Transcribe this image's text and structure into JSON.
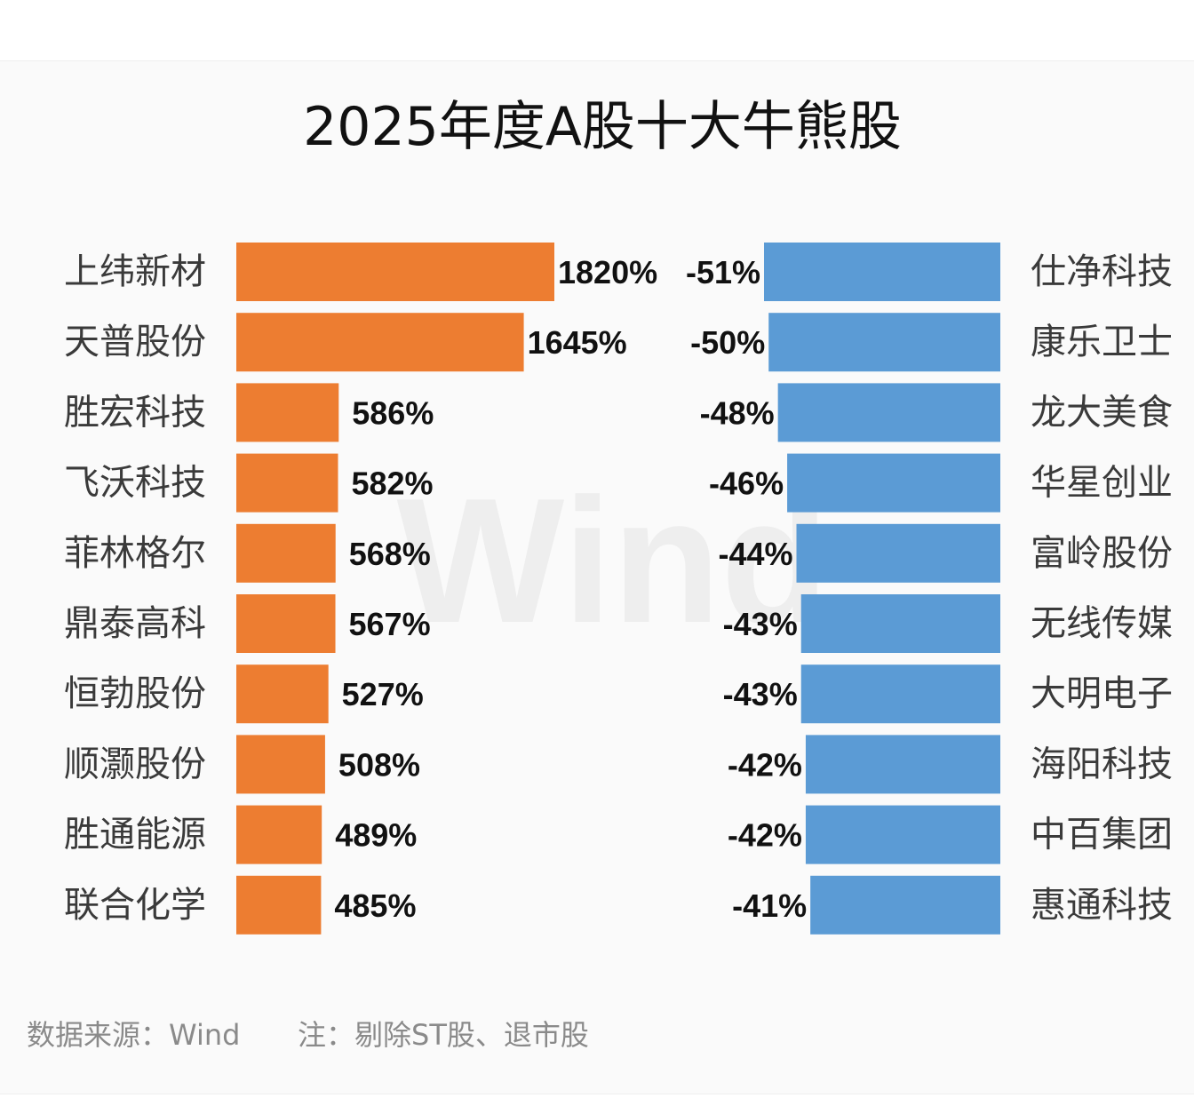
{
  "chart_data": {
    "type": "bar",
    "title": "2025年度A股十大牛熊股",
    "watermark": "Wind",
    "source": "数据来源：Wind",
    "note": "注：剔除ST股、退市股",
    "colors": {
      "bull": "#ED7D31",
      "bear": "#5B9BD5"
    },
    "series": [
      {
        "categories": [
          "上纬新材",
          "天普股份",
          "胜宏科技",
          "飞沃科技",
          "菲林格尔",
          "鼎泰高科",
          "恒勃股份",
          "顺灏股份",
          "胜通能源",
          "联合化学"
        ],
        "values": [
          1820,
          1645,
          586,
          582,
          568,
          567,
          527,
          508,
          489,
          485
        ],
        "labels": [
          "1820%",
          "1645%",
          "586%",
          "582%",
          "568%",
          "567%",
          "527%",
          "508%",
          "489%",
          "485%"
        ]
      },
      {
        "categories": [
          "仕净科技",
          "康乐卫士",
          "龙大美食",
          "华星创业",
          "富岭股份",
          "无线传媒",
          "大明电子",
          "海阳科技",
          "中百集团",
          "惠通科技"
        ],
        "values": [
          -51,
          -50,
          -48,
          -46,
          -44,
          -43,
          -43,
          -42,
          -42,
          -41
        ],
        "labels": [
          "-51%",
          "-50%",
          "-48%",
          "-46%",
          "-44%",
          "-43%",
          "-43%",
          "-42%",
          "-42%",
          "-41%"
        ]
      }
    ]
  }
}
